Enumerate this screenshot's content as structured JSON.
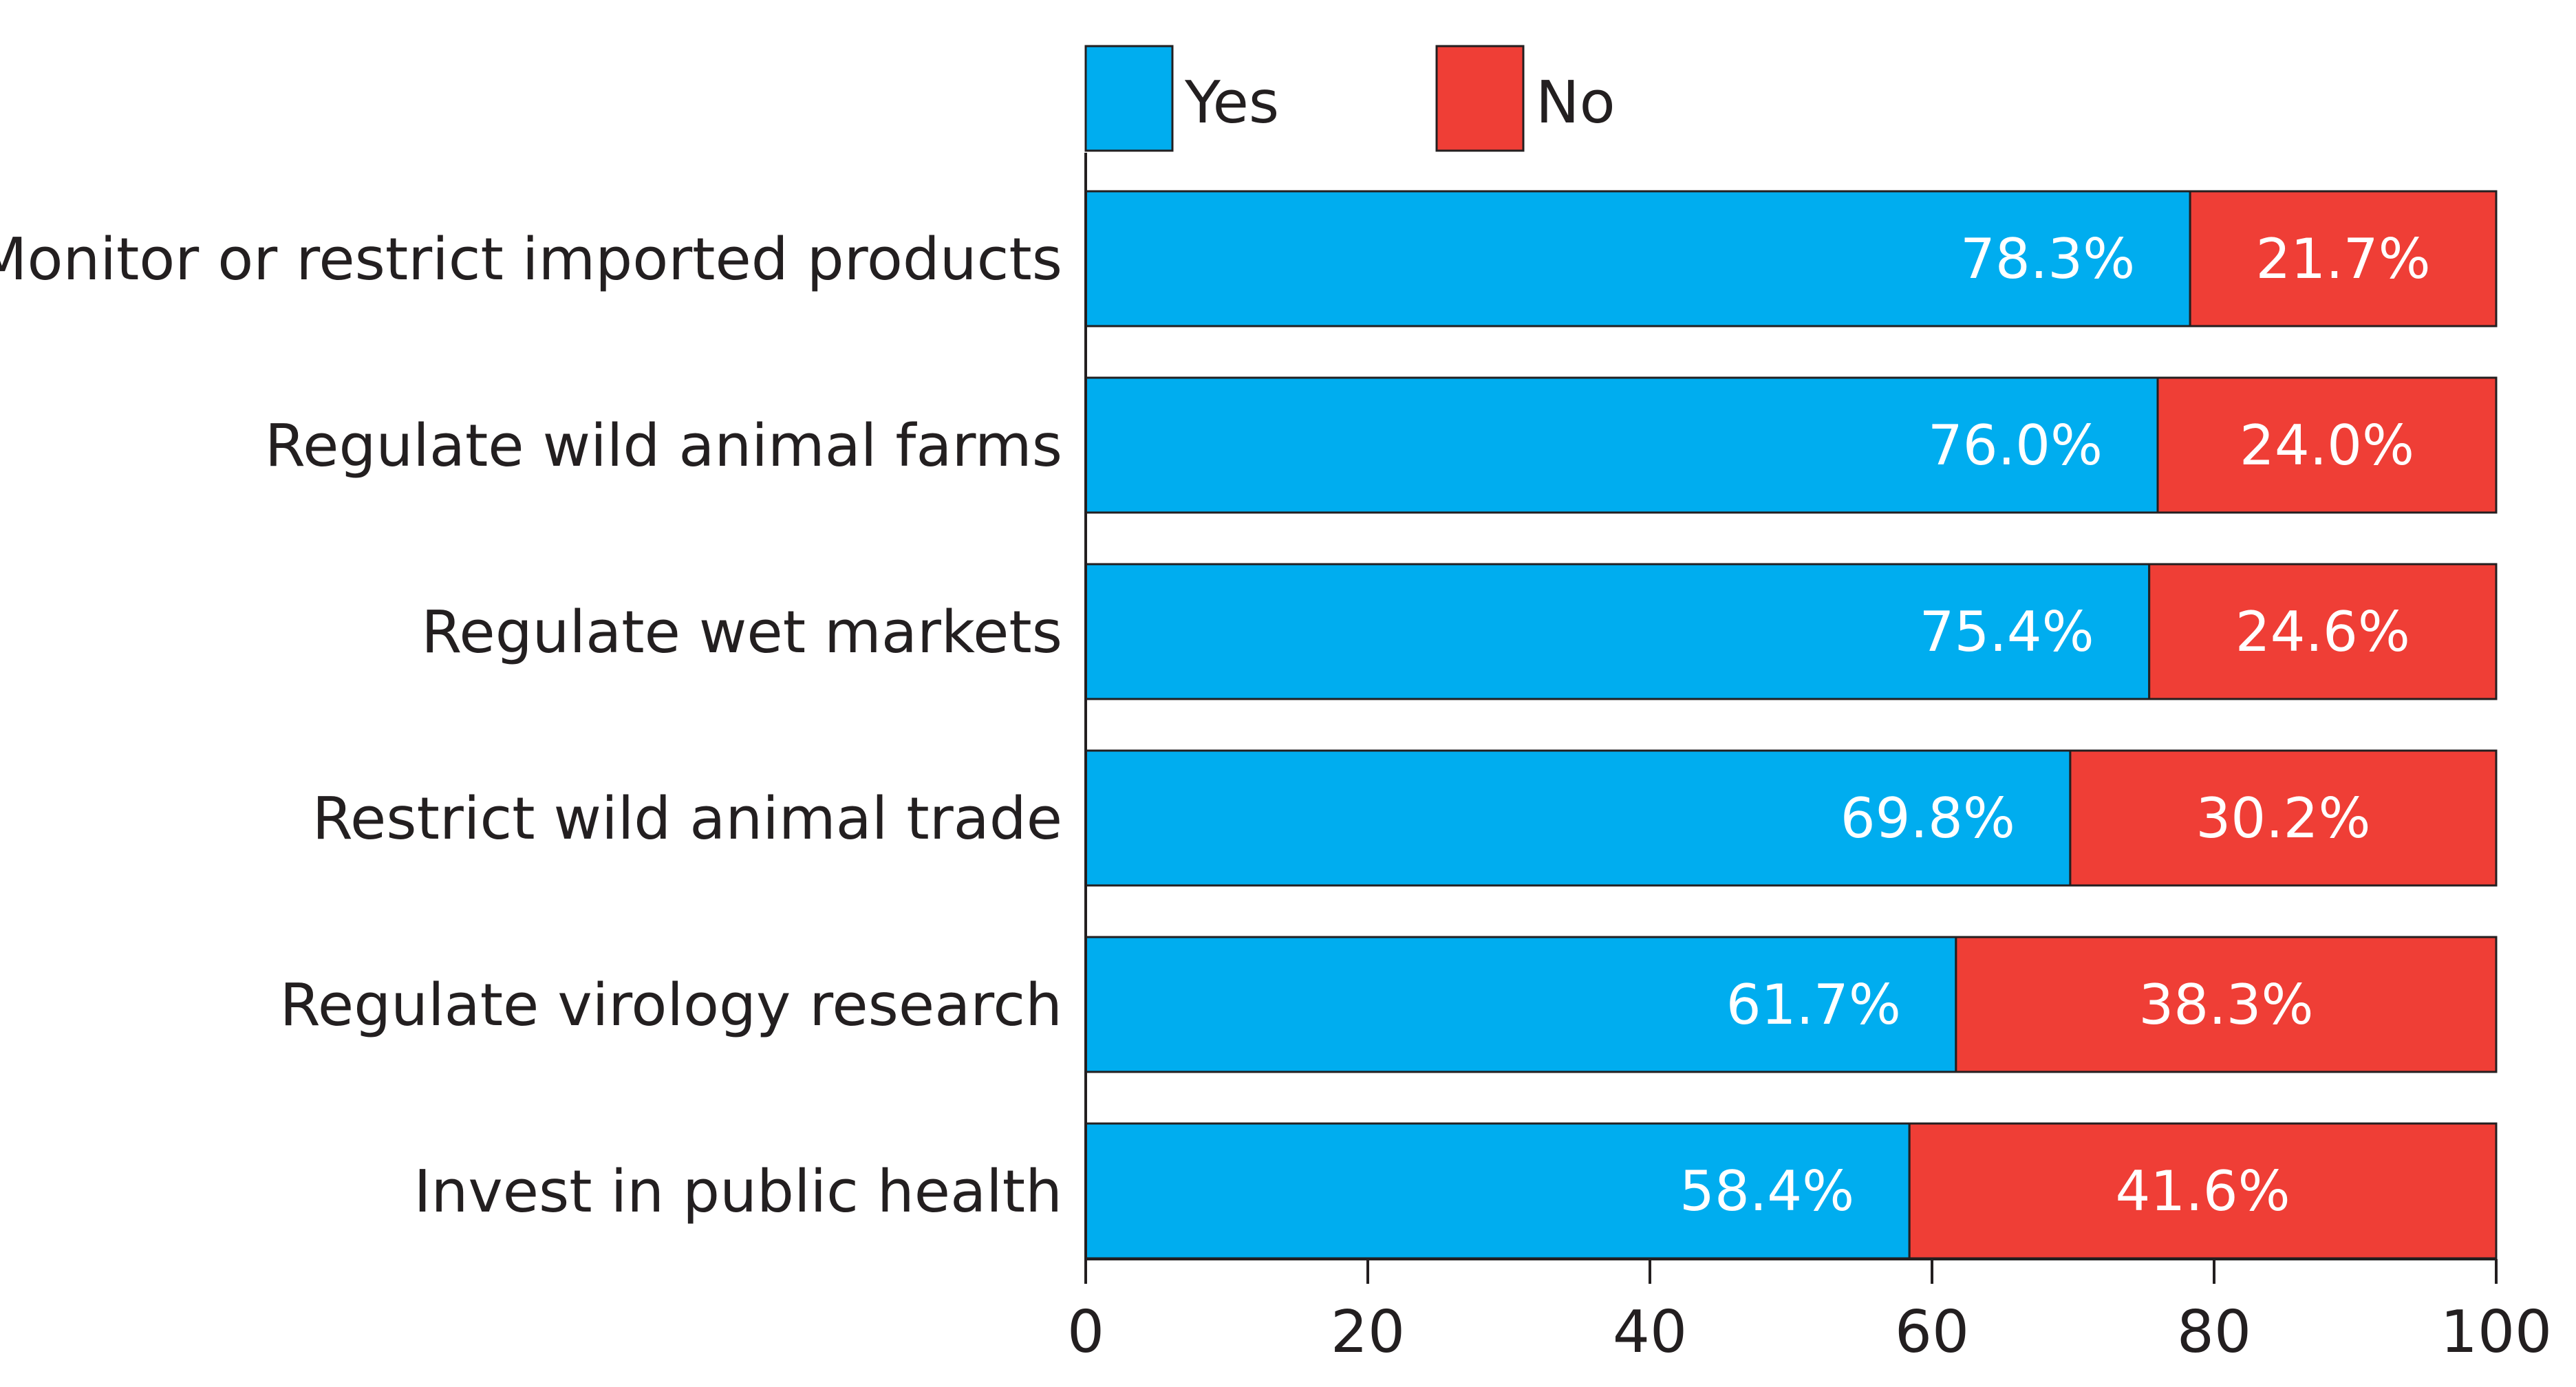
{
  "chart_data": {
    "type": "bar",
    "orientation": "horizontal",
    "stacked": true,
    "title": "",
    "xlabel": "",
    "ylabel": "",
    "xlim": [
      0,
      100
    ],
    "xticks": [
      0,
      20,
      40,
      60,
      80,
      100
    ],
    "xtick_labels": [
      "0",
      "20",
      "40",
      "60",
      "80",
      "100"
    ],
    "categories": [
      "Monitor or restrict imported products",
      "Regulate wild animal farms",
      "Regulate wet markets",
      "Restrict wild animal trade",
      "Regulate virology research",
      "Invest in public health"
    ],
    "series": [
      {
        "name": "Yes",
        "color": "#00adef",
        "values": [
          78.3,
          76.0,
          75.4,
          69.8,
          61.7,
          58.4
        ],
        "labels": [
          "78.3%",
          "76.0%",
          "75.4%",
          "69.8%",
          "61.7%",
          "58.4%"
        ]
      },
      {
        "name": "No",
        "color": "#ef3e36",
        "values": [
          21.7,
          24.0,
          24.6,
          30.2,
          38.3,
          41.6
        ],
        "labels": [
          "21.7%",
          "24.0%",
          "24.6%",
          "30.2%",
          "38.3%",
          "41.6%"
        ]
      }
    ],
    "legend": {
      "position": "top",
      "entries": [
        "Yes",
        "No"
      ]
    },
    "grid": false
  }
}
